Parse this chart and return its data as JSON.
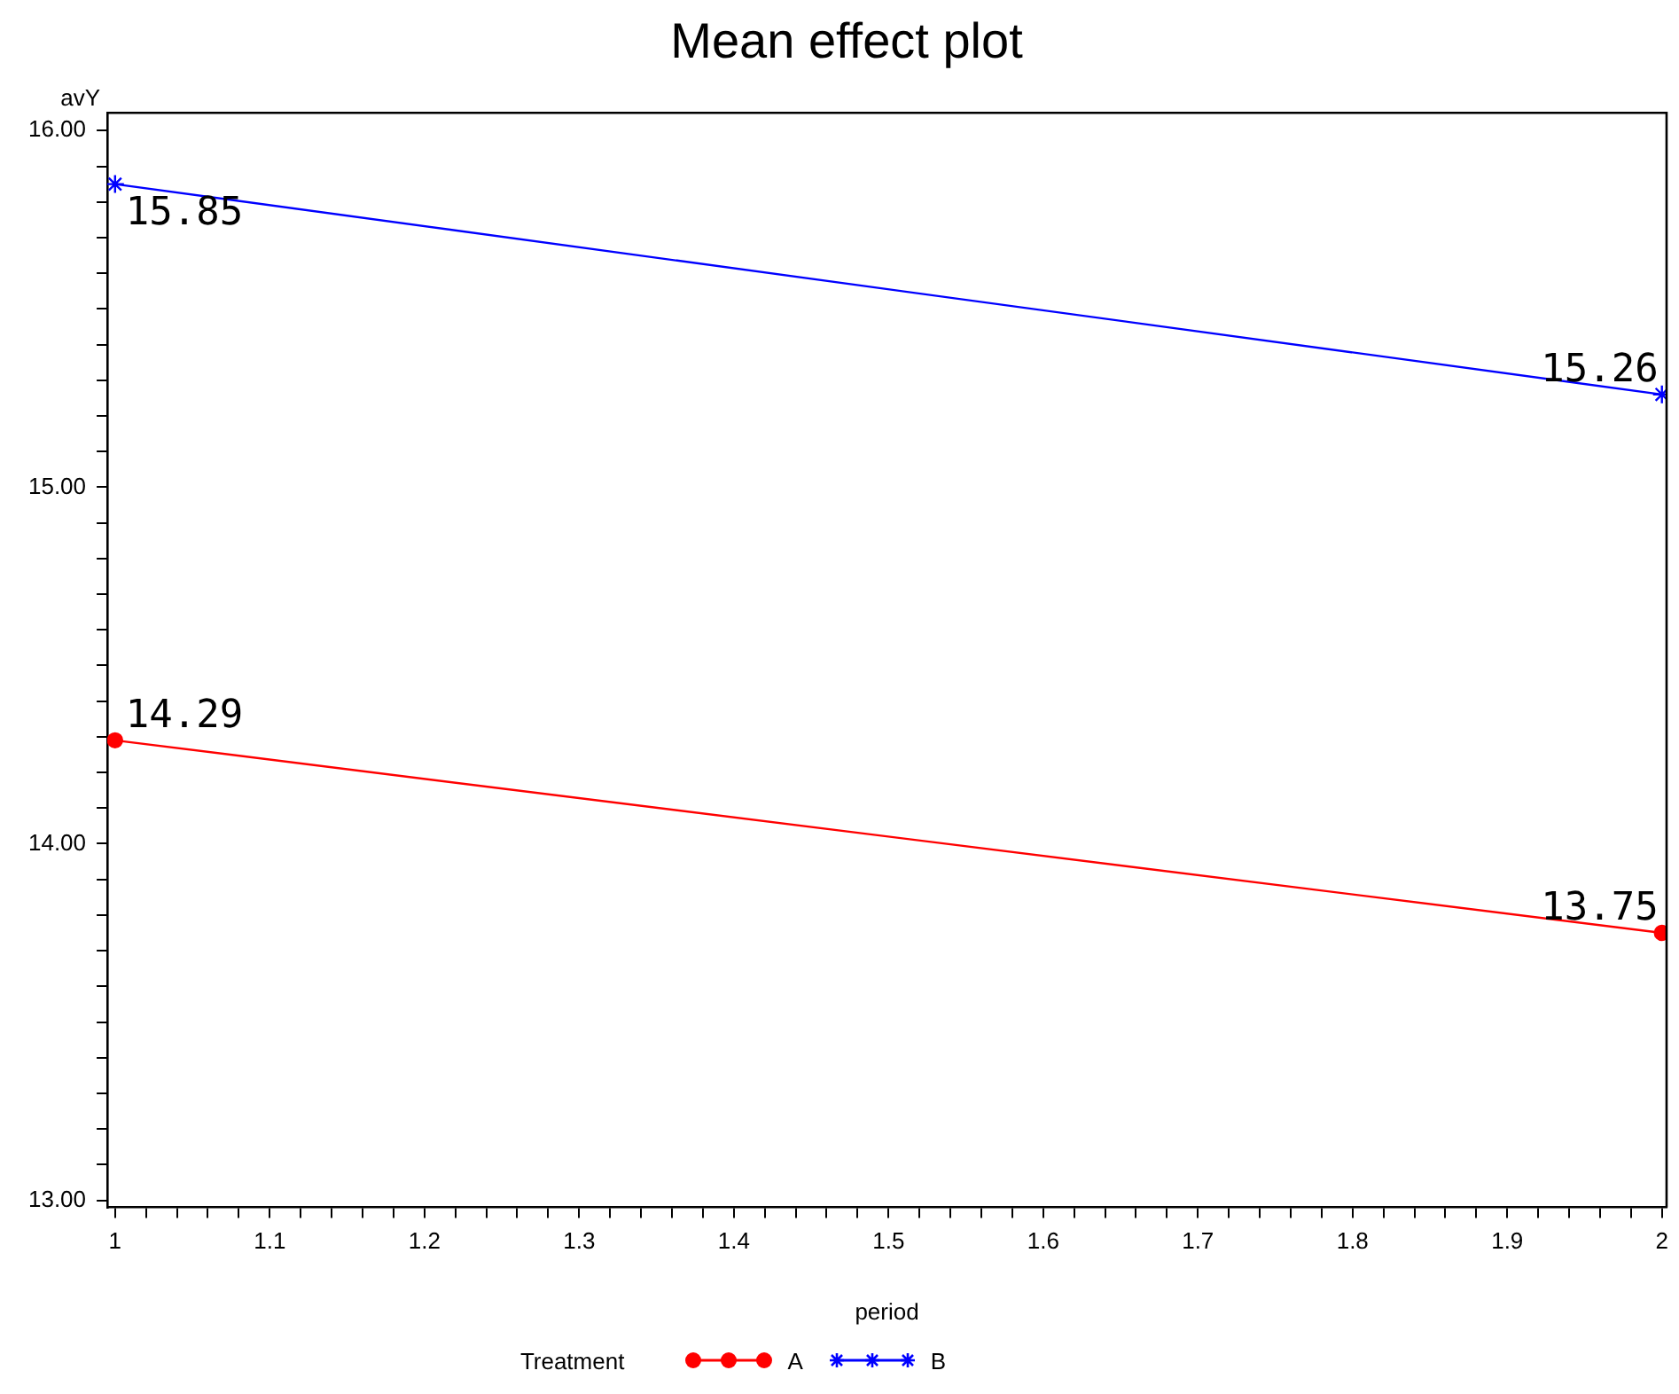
{
  "chart_data": {
    "type": "line",
    "title": "Mean effect plot",
    "xlabel": "period",
    "ylabel": "avY",
    "legend_title": "Treatment",
    "legend": "bottom",
    "grid": false,
    "data_labels": true,
    "x": [
      1,
      2
    ],
    "series": [
      {
        "name": "A",
        "color": "#ff0000",
        "marker": "circle",
        "values": [
          14.29,
          13.75
        ]
      },
      {
        "name": "B",
        "color": "#0000ff",
        "marker": "cross",
        "values": [
          15.85,
          15.26
        ]
      }
    ],
    "xlim": [
      0.995,
      2.003
    ],
    "xticks": [
      1,
      {
        "value": 1.02,
        "label": null
      },
      {
        "value": 1.04,
        "label": null
      },
      {
        "value": 1.06,
        "label": null
      },
      {
        "value": 1.08,
        "label": null
      },
      1.1,
      {
        "value": 1.12,
        "label": null
      },
      {
        "value": 1.14,
        "label": null
      },
      {
        "value": 1.16,
        "label": null
      },
      {
        "value": 1.18,
        "label": null
      },
      1.2,
      {
        "value": 1.22,
        "label": null
      },
      {
        "value": 1.24,
        "label": null
      },
      {
        "value": 1.26,
        "label": null
      },
      {
        "value": 1.28,
        "label": null
      },
      1.3,
      {
        "value": 1.32,
        "label": null
      },
      {
        "value": 1.34,
        "label": null
      },
      {
        "value": 1.36,
        "label": null
      },
      {
        "value": 1.38,
        "label": null
      },
      1.4,
      {
        "value": 1.42,
        "label": null
      },
      {
        "value": 1.44,
        "label": null
      },
      {
        "value": 1.46,
        "label": null
      },
      {
        "value": 1.48,
        "label": null
      },
      1.5,
      {
        "value": 1.52,
        "label": null
      },
      {
        "value": 1.54,
        "label": null
      },
      {
        "value": 1.56,
        "label": null
      },
      {
        "value": 1.58,
        "label": null
      },
      1.6,
      {
        "value": 1.62,
        "label": null
      },
      {
        "value": 1.64,
        "label": null
      },
      {
        "value": 1.66,
        "label": null
      },
      {
        "value": 1.68,
        "label": null
      },
      1.7,
      {
        "value": 1.72,
        "label": null
      },
      {
        "value": 1.74,
        "label": null
      },
      {
        "value": 1.76,
        "label": null
      },
      {
        "value": 1.78,
        "label": null
      },
      1.8,
      {
        "value": 1.82,
        "label": null
      },
      {
        "value": 1.84,
        "label": null
      },
      {
        "value": 1.86,
        "label": null
      },
      {
        "value": 1.88,
        "label": null
      },
      1.9,
      {
        "value": 1.92,
        "label": null
      },
      {
        "value": 1.94,
        "label": null
      },
      {
        "value": 1.96,
        "label": null
      },
      {
        "value": 1.98,
        "label": null
      },
      2
    ],
    "ylim": [
      12.98,
      16.05
    ],
    "yticks": [
      {
        "value": 13,
        "label": "13.00"
      },
      {
        "value": 13.1,
        "label": null
      },
      {
        "value": 13.2,
        "label": null
      },
      {
        "value": 13.3,
        "label": null
      },
      {
        "value": 13.4,
        "label": null
      },
      {
        "value": 13.5,
        "label": null
      },
      {
        "value": 13.6,
        "label": null
      },
      {
        "value": 13.7,
        "label": null
      },
      {
        "value": 13.8,
        "label": null
      },
      {
        "value": 13.9,
        "label": null
      },
      {
        "value": 14,
        "label": "14.00"
      },
      {
        "value": 14.1,
        "label": null
      },
      {
        "value": 14.2,
        "label": null
      },
      {
        "value": 14.3,
        "label": null
      },
      {
        "value": 14.4,
        "label": null
      },
      {
        "value": 14.5,
        "label": null
      },
      {
        "value": 14.6,
        "label": null
      },
      {
        "value": 14.7,
        "label": null
      },
      {
        "value": 14.8,
        "label": null
      },
      {
        "value": 14.9,
        "label": null
      },
      {
        "value": 15,
        "label": "15.00"
      },
      {
        "value": 15.1,
        "label": null
      },
      {
        "value": 15.2,
        "label": null
      },
      {
        "value": 15.3,
        "label": null
      },
      {
        "value": 15.4,
        "label": null
      },
      {
        "value": 15.5,
        "label": null
      },
      {
        "value": 15.6,
        "label": null
      },
      {
        "value": 15.7,
        "label": null
      },
      {
        "value": 15.8,
        "label": null
      },
      {
        "value": 15.9,
        "label": null
      },
      {
        "value": 16,
        "label": "16.00"
      }
    ]
  }
}
